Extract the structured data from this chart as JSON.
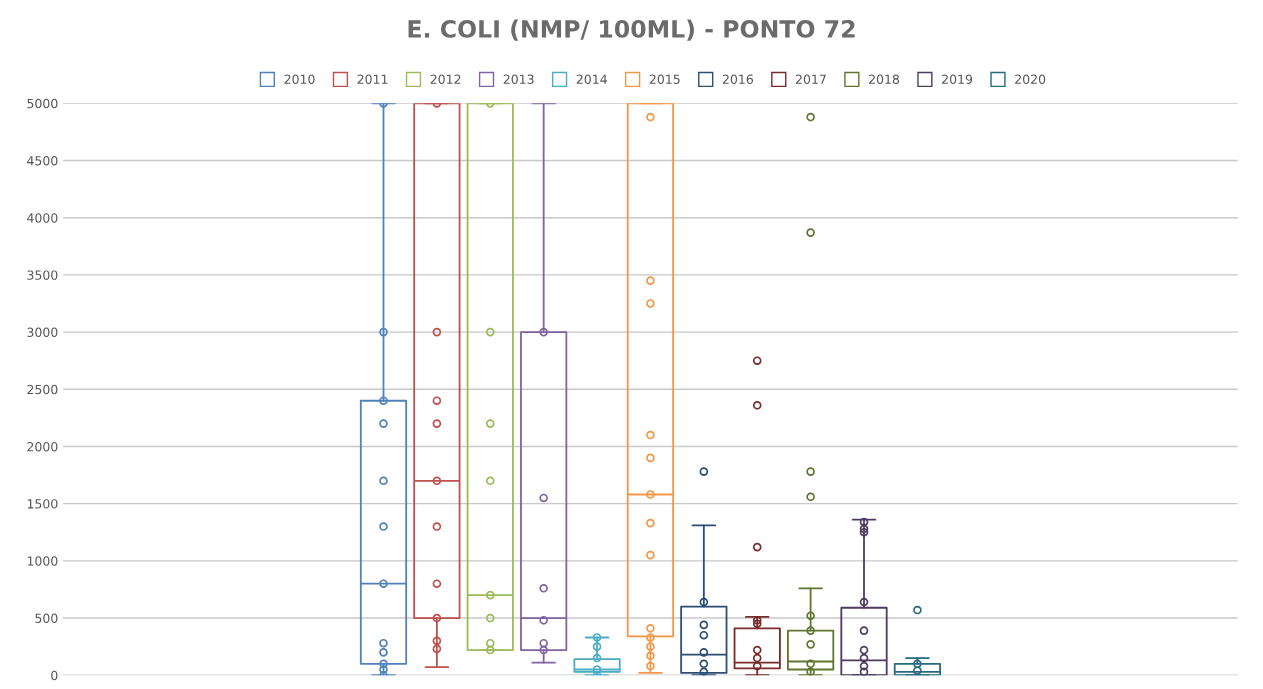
{
  "chart_data": {
    "type": "box",
    "title": "E. COLI (NMP/ 100ML) - PONTO 72",
    "categories": [
      null
    ],
    "ylim": [
      0,
      5000
    ],
    "yticks": [
      0,
      500,
      1000,
      1500,
      2000,
      2500,
      3000,
      3500,
      4000,
      4500,
      5000
    ],
    "grid": "y",
    "legend": "top",
    "tick_labels": "y",
    "marker": "circle",
    "series": [
      {
        "name": "2010",
        "color": "#4f81bd",
        "boxes": [
          {
            "low": 0,
            "q1": 100,
            "median": 800,
            "q3": 2400,
            "high": 5000,
            "outliers": [
              5000,
              3000,
              2400,
              2200,
              1700,
              1300,
              800,
              280,
              200,
              100,
              50,
              0
            ]
          }
        ]
      },
      {
        "name": "2011",
        "color": "#c0504d",
        "boxes": [
          {
            "low": 70,
            "q1": 500,
            "median": 1700,
            "q3": 5000,
            "high": 5000,
            "outliers": [
              5000,
              3000,
              2400,
              2200,
              1700,
              1300,
              800,
              500,
              300,
              230
            ]
          }
        ]
      },
      {
        "name": "2012",
        "color": "#9bbb59",
        "boxes": [
          {
            "low": 220,
            "q1": 220,
            "median": 700,
            "q3": 5000,
            "high": 5000,
            "outliers": [
              5000,
              3000,
              2200,
              1700,
              700,
              500,
              280,
              220
            ]
          }
        ]
      },
      {
        "name": "2013",
        "color": "#8064a2",
        "boxes": [
          {
            "low": 110,
            "q1": 220,
            "median": 500,
            "q3": 3000,
            "high": 5000,
            "outliers": [
              3000,
              1550,
              760,
              480,
              280,
              220
            ]
          }
        ]
      },
      {
        "name": "2014",
        "color": "#4bacc6",
        "boxes": [
          {
            "low": 0,
            "q1": 30,
            "median": 50,
            "q3": 140,
            "high": 330,
            "outliers": [
              330,
              250,
              150,
              50,
              0
            ]
          }
        ]
      },
      {
        "name": "2015",
        "color": "#f79646",
        "boxes": [
          {
            "low": 20,
            "q1": 340,
            "median": 1580,
            "q3": 5000,
            "high": 5000,
            "outliers": [
              4880,
              3450,
              3250,
              2100,
              1900,
              1580,
              1330,
              1050,
              410,
              330,
              250,
              170,
              80
            ]
          }
        ]
      },
      {
        "name": "2016",
        "color": "#2c4d75",
        "boxes": [
          {
            "low": 0,
            "q1": 20,
            "median": 180,
            "q3": 600,
            "high": 1310,
            "outliers": [
              1780,
              640,
              440,
              350,
              200,
              100,
              30
            ]
          }
        ]
      },
      {
        "name": "2017",
        "color": "#772c2a",
        "boxes": [
          {
            "low": 0,
            "q1": 60,
            "median": 110,
            "q3": 410,
            "high": 510,
            "outliers": [
              2750,
              2360,
              1120,
              480,
              450,
              220,
              150,
              80
            ]
          }
        ]
      },
      {
        "name": "2018",
        "color": "#5f7530",
        "boxes": [
          {
            "low": 0,
            "q1": 50,
            "median": 120,
            "q3": 390,
            "high": 760,
            "outliers": [
              4880,
              3870,
              1780,
              1560,
              520,
              390,
              270,
              100,
              30
            ]
          }
        ]
      },
      {
        "name": "2019",
        "color": "#4d3b62",
        "boxes": [
          {
            "low": 0,
            "q1": 0,
            "median": 130,
            "q3": 590,
            "high": 1360,
            "outliers": [
              1340,
              1280,
              1250,
              640,
              390,
              220,
              150,
              80,
              30
            ]
          }
        ]
      },
      {
        "name": "2020",
        "color": "#276a7c",
        "boxes": [
          {
            "low": 0,
            "q1": 0,
            "median": 30,
            "q3": 100,
            "high": 150,
            "outliers": [
              570,
              100,
              40
            ]
          }
        ]
      }
    ]
  }
}
